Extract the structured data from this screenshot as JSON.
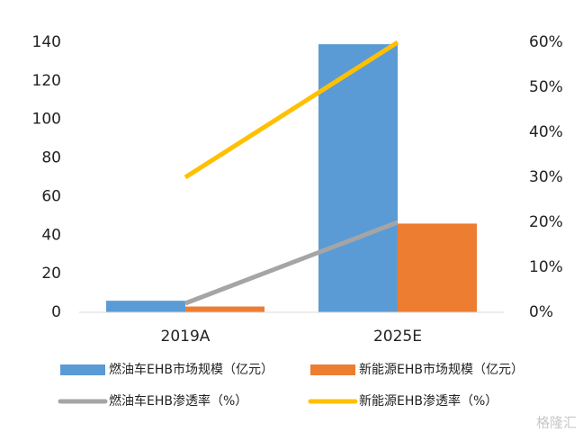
{
  "chart_data": {
    "type": "bar",
    "categories": [
      "2019A",
      "2025E"
    ],
    "series": [
      {
        "name": "燃油车EHB市场规模（亿元）",
        "type": "bar",
        "color": "#5b9bd5",
        "values": [
          6,
          139
        ]
      },
      {
        "name": "新能源EHB市场规模（亿元）",
        "type": "bar",
        "color": "#ed7d31",
        "values": [
          3,
          46
        ]
      },
      {
        "name": "燃油车EHB渗透率（%）",
        "type": "line",
        "axis": "y2",
        "color": "#a5a5a5",
        "values": [
          2,
          20
        ]
      },
      {
        "name": "新能源EHB渗透率（%）",
        "type": "line",
        "axis": "y2",
        "color": "#ffc000",
        "values": [
          30,
          60
        ]
      }
    ],
    "ylim": [
      0,
      140
    ],
    "yticks": [
      0,
      20,
      40,
      60,
      80,
      100,
      120,
      140
    ],
    "y2lim": [
      0,
      60
    ],
    "y2ticks": [
      {
        "value": 0,
        "label": "0%"
      },
      {
        "value": 10,
        "label": "10%"
      },
      {
        "value": 20,
        "label": "20%"
      },
      {
        "value": 30,
        "label": "30%"
      },
      {
        "value": 40,
        "label": "40%"
      },
      {
        "value": 50,
        "label": "50%"
      },
      {
        "value": 60,
        "label": "60%"
      }
    ],
    "grid": false,
    "legend": "bottom",
    "watermark": "格隆汇"
  }
}
